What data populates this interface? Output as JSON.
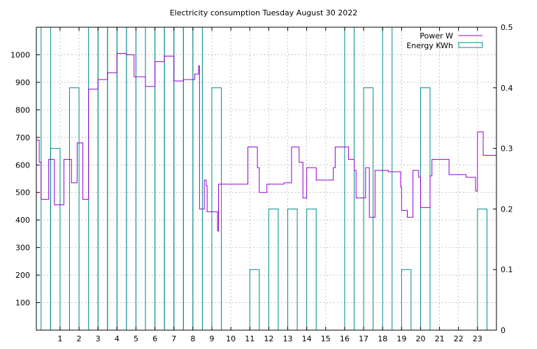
{
  "chart_data": {
    "type": "line",
    "title": "Electricity consumption Tuesday August 30 2022",
    "xlim": [
      -0.25,
      24
    ],
    "y_left_lim": [
      0,
      1100
    ],
    "y_right_lim": [
      0,
      0.5
    ],
    "x_ticks": [
      1,
      2,
      3,
      4,
      5,
      6,
      7,
      8,
      9,
      10,
      11,
      12,
      13,
      14,
      15,
      16,
      17,
      18,
      19,
      20,
      21,
      22,
      23
    ],
    "y_left_ticks": [
      100,
      200,
      300,
      400,
      500,
      600,
      700,
      800,
      900,
      1000
    ],
    "y_right_ticks": [
      0,
      0.1,
      0.2,
      0.3,
      0.4,
      0.5
    ],
    "grid": true,
    "legend_position": "top-right",
    "series": [
      {
        "name": "Power W",
        "axis": "left",
        "color": "#9400d3",
        "style": "steps",
        "points": [
          [
            -0.25,
            690
          ],
          [
            -0.1,
            690
          ],
          [
            -0.1,
            610
          ],
          [
            0.0,
            610
          ],
          [
            0.0,
            475
          ],
          [
            0.4,
            475
          ],
          [
            0.4,
            620
          ],
          [
            0.7,
            620
          ],
          [
            0.7,
            455
          ],
          [
            1.2,
            455
          ],
          [
            1.2,
            620
          ],
          [
            1.6,
            620
          ],
          [
            1.6,
            535
          ],
          [
            1.9,
            535
          ],
          [
            1.9,
            680
          ],
          [
            2.2,
            680
          ],
          [
            2.2,
            475
          ],
          [
            2.5,
            475
          ],
          [
            2.5,
            875
          ],
          [
            3.0,
            875
          ],
          [
            3.0,
            910
          ],
          [
            3.5,
            910
          ],
          [
            3.5,
            935
          ],
          [
            4.0,
            935
          ],
          [
            4.0,
            1005
          ],
          [
            4.5,
            1005
          ],
          [
            4.5,
            1000
          ],
          [
            4.9,
            1000
          ],
          [
            4.9,
            920
          ],
          [
            5.5,
            920
          ],
          [
            5.5,
            885
          ],
          [
            6.0,
            885
          ],
          [
            6.0,
            975
          ],
          [
            6.5,
            975
          ],
          [
            6.5,
            995
          ],
          [
            7.0,
            995
          ],
          [
            7.0,
            905
          ],
          [
            7.5,
            905
          ],
          [
            7.5,
            910
          ],
          [
            8.1,
            910
          ],
          [
            8.1,
            930
          ],
          [
            8.3,
            930
          ],
          [
            8.3,
            960
          ],
          [
            8.35,
            960
          ],
          [
            8.35,
            440
          ],
          [
            8.6,
            440
          ],
          [
            8.6,
            545
          ],
          [
            8.7,
            545
          ],
          [
            8.7,
            525
          ],
          [
            8.75,
            525
          ],
          [
            8.75,
            430
          ],
          [
            9.3,
            430
          ],
          [
            9.3,
            360
          ],
          [
            9.35,
            360
          ],
          [
            9.35,
            530
          ],
          [
            10.9,
            530
          ],
          [
            10.9,
            665
          ],
          [
            11.4,
            665
          ],
          [
            11.4,
            590
          ],
          [
            11.5,
            590
          ],
          [
            11.5,
            500
          ],
          [
            11.9,
            500
          ],
          [
            11.9,
            530
          ],
          [
            12.8,
            530
          ],
          [
            12.8,
            535
          ],
          [
            13.2,
            535
          ],
          [
            13.2,
            665
          ],
          [
            13.6,
            665
          ],
          [
            13.6,
            610
          ],
          [
            13.8,
            610
          ],
          [
            13.8,
            480
          ],
          [
            14.0,
            480
          ],
          [
            14.0,
            590
          ],
          [
            14.5,
            590
          ],
          [
            14.5,
            545
          ],
          [
            15.4,
            545
          ],
          [
            15.4,
            590
          ],
          [
            15.5,
            590
          ],
          [
            15.5,
            665
          ],
          [
            16.2,
            665
          ],
          [
            16.2,
            620
          ],
          [
            16.5,
            620
          ],
          [
            16.5,
            580
          ],
          [
            16.6,
            580
          ],
          [
            16.6,
            480
          ],
          [
            17.1,
            480
          ],
          [
            17.1,
            590
          ],
          [
            17.3,
            590
          ],
          [
            17.3,
            410
          ],
          [
            17.6,
            410
          ],
          [
            17.6,
            580
          ],
          [
            18.3,
            580
          ],
          [
            18.3,
            575
          ],
          [
            18.95,
            575
          ],
          [
            18.95,
            520
          ],
          [
            19.0,
            520
          ],
          [
            19.0,
            435
          ],
          [
            19.3,
            435
          ],
          [
            19.3,
            410
          ],
          [
            19.6,
            410
          ],
          [
            19.6,
            580
          ],
          [
            19.9,
            580
          ],
          [
            19.9,
            555
          ],
          [
            20.0,
            555
          ],
          [
            20.0,
            445
          ],
          [
            20.5,
            445
          ],
          [
            20.5,
            560
          ],
          [
            20.6,
            560
          ],
          [
            20.6,
            620
          ],
          [
            21.5,
            620
          ],
          [
            21.5,
            565
          ],
          [
            22.4,
            565
          ],
          [
            22.4,
            555
          ],
          [
            22.9,
            555
          ],
          [
            22.9,
            505
          ],
          [
            23.0,
            505
          ],
          [
            23.0,
            720
          ],
          [
            23.3,
            720
          ],
          [
            23.3,
            635
          ],
          [
            24.0,
            635
          ]
        ]
      },
      {
        "name": "Energy KWh",
        "axis": "right",
        "color": "#008b8b",
        "style": "bars",
        "bars": [
          [
            0.0,
            0.5
          ],
          [
            0.5,
            0.3
          ],
          [
            1.5,
            0.4
          ],
          [
            2.5,
            0.5
          ],
          [
            3.0,
            0.5
          ],
          [
            3.5,
            0.5
          ],
          [
            4.0,
            0.5
          ],
          [
            4.5,
            0.5
          ],
          [
            5.0,
            0.5
          ],
          [
            5.5,
            0.5
          ],
          [
            6.0,
            0.5
          ],
          [
            6.5,
            0.5
          ],
          [
            7.0,
            0.5
          ],
          [
            7.5,
            0.5
          ],
          [
            8.0,
            0.5
          ],
          [
            9.0,
            0.4
          ],
          [
            11.0,
            0.1
          ],
          [
            12.0,
            0.2
          ],
          [
            13.0,
            0.2
          ],
          [
            14.0,
            0.2
          ],
          [
            16.0,
            0.5
          ],
          [
            17.0,
            0.4
          ],
          [
            18.0,
            0.5
          ],
          [
            19.0,
            0.1
          ],
          [
            20.0,
            0.4
          ],
          [
            23.0,
            0.2
          ]
        ]
      }
    ]
  }
}
